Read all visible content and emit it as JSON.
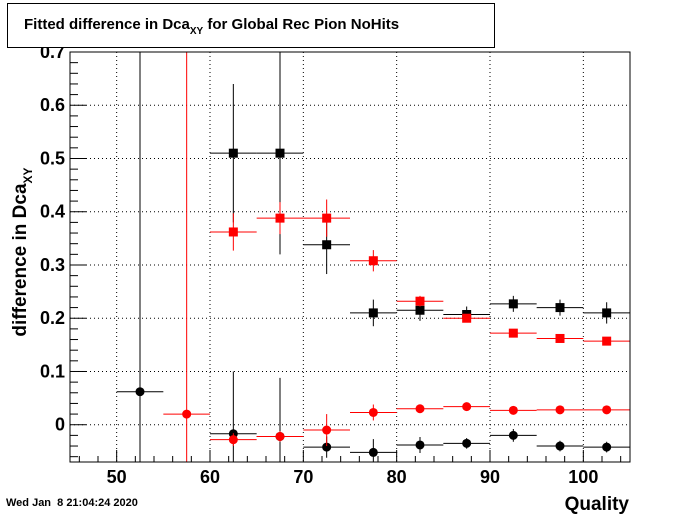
{
  "chart_data": {
    "type": "scatter",
    "title": "Fitted difference in Dca",
    "title_subscript": "XY",
    "title_suffix": " for Global Rec Pion NoHits",
    "xlabel": "Quality",
    "ylabel": "difference in Dca",
    "ylabel_subscript": "XY",
    "xlim": [
      45,
      105
    ],
    "ylim": [
      -0.07,
      0.7
    ],
    "x_ticks": [
      50,
      60,
      70,
      80,
      90,
      100
    ],
    "y_ticks": [
      0,
      0.1,
      0.2,
      0.3,
      0.4,
      0.5,
      0.6,
      0.7
    ],
    "y_tick_labels": [
      "0",
      "0.1",
      "0.2",
      "0.3",
      "0.4",
      "0.5",
      "0.6",
      "0.7"
    ],
    "grid": true,
    "bin_half_width": 2.5,
    "series": [
      {
        "marker": "square",
        "color": "#000000",
        "points": [
          {
            "x": 62.5,
            "y": 0.51,
            "err": 0.13
          },
          {
            "x": 67.5,
            "y": 0.51,
            "err": 0.19
          },
          {
            "x": 72.5,
            "y": 0.338,
            "err": 0.055
          },
          {
            "x": 77.5,
            "y": 0.21,
            "err": 0.025
          },
          {
            "x": 82.5,
            "y": 0.215,
            "err": 0.02
          },
          {
            "x": 87.5,
            "y": 0.207,
            "err": 0.015
          },
          {
            "x": 92.5,
            "y": 0.227,
            "err": 0.015
          },
          {
            "x": 97.5,
            "y": 0.22,
            "err": 0.015
          },
          {
            "x": 102.5,
            "y": 0.21,
            "err": 0.02
          }
        ]
      },
      {
        "marker": "square",
        "color": "#ff0000",
        "points": [
          {
            "x": 62.5,
            "y": 0.362,
            "err": 0.035
          },
          {
            "x": 67.5,
            "y": 0.388,
            "err": 0.03
          },
          {
            "x": 72.5,
            "y": 0.388,
            "err": 0.035
          },
          {
            "x": 77.5,
            "y": 0.308,
            "err": 0.02
          },
          {
            "x": 82.5,
            "y": 0.232,
            "err": 0.01
          },
          {
            "x": 87.5,
            "y": 0.2,
            "err": 0.008
          },
          {
            "x": 92.5,
            "y": 0.172,
            "err": 0.005
          },
          {
            "x": 97.5,
            "y": 0.162,
            "err": 0.005
          },
          {
            "x": 102.5,
            "y": 0.157,
            "err": 0.004
          }
        ]
      },
      {
        "marker": "circle",
        "color": "#000000",
        "points": [
          {
            "x": 52.5,
            "y": 0.062,
            "err": 0.7
          },
          {
            "x": 62.5,
            "y": -0.017,
            "err": 0.117
          },
          {
            "x": 67.5,
            "y": -0.022,
            "err": 0.11
          },
          {
            "x": 72.5,
            "y": -0.042,
            "err": 0.02
          },
          {
            "x": 77.5,
            "y": -0.052,
            "err": 0.025
          },
          {
            "x": 82.5,
            "y": -0.038,
            "err": 0.015
          },
          {
            "x": 87.5,
            "y": -0.035,
            "err": 0.01
          },
          {
            "x": 92.5,
            "y": -0.02,
            "err": 0.012
          },
          {
            "x": 97.5,
            "y": -0.04,
            "err": 0.01
          },
          {
            "x": 102.5,
            "y": -0.042,
            "err": 0.01
          }
        ]
      },
      {
        "marker": "circle",
        "color": "#ff0000",
        "points": [
          {
            "x": 57.5,
            "y": 0.02,
            "err": 0.7
          },
          {
            "x": 62.5,
            "y": -0.028,
            "err": 0.012
          },
          {
            "x": 67.5,
            "y": -0.022,
            "err": 0.01
          },
          {
            "x": 72.5,
            "y": -0.01,
            "err": 0.03
          },
          {
            "x": 77.5,
            "y": 0.023,
            "err": 0.015
          },
          {
            "x": 82.5,
            "y": 0.03,
            "err": 0.008
          },
          {
            "x": 87.5,
            "y": 0.034,
            "err": 0.006
          },
          {
            "x": 92.5,
            "y": 0.027,
            "err": 0.005
          },
          {
            "x": 97.5,
            "y": 0.028,
            "err": 0.004
          },
          {
            "x": 102.5,
            "y": 0.028,
            "err": 0.004
          }
        ]
      }
    ]
  },
  "footer": {
    "timestamp": "Wed Jan  8 21:04:24 2020"
  }
}
